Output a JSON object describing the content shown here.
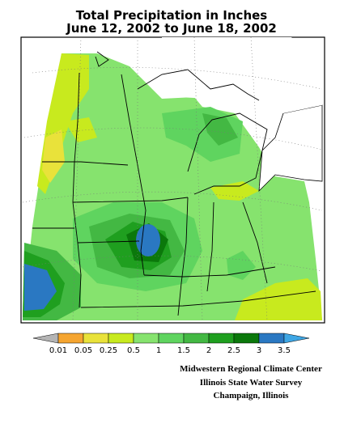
{
  "header": {
    "title_lines": [
      "Total Precipitation in Inches",
      "June 12, 2002 to June 18, 2002"
    ]
  },
  "legend": {
    "tick_labels": [
      "0.01",
      "0.05",
      "0.25",
      "0.5",
      "1",
      "1.5",
      "2",
      "2.5",
      "3",
      "3.5"
    ],
    "colors": [
      "#b4b4b4",
      "#f5a530",
      "#e9e23a",
      "#c8ea1e",
      "#86e36e",
      "#5fd45f",
      "#43b843",
      "#1f9f1f",
      "#0b780b",
      "#2a78c2",
      "#3ea6e4"
    ]
  },
  "credits": [
    "Midwestern Regional Climate Center",
    "Illinois State Water Survey",
    "Champaign, Illinois"
  ]
}
